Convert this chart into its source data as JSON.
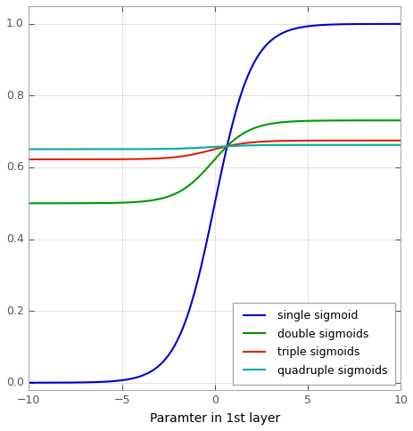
{
  "title": "",
  "xlabel": "Paramter in 1st layer",
  "ylabel": "",
  "xlim": [
    -10,
    10
  ],
  "ylim": [
    -0.02,
    1.05
  ],
  "xticks": [
    -10,
    -5,
    0,
    5,
    10
  ],
  "yticks": [
    0.0,
    0.2,
    0.4,
    0.6,
    0.8,
    1.0
  ],
  "line_colors": {
    "single": "#0000cc",
    "double": "#009900",
    "triple": "#dd2200",
    "quadruple": "#00aaaa"
  },
  "legend_labels": [
    "single sigmoid",
    "double sigmoids",
    "triple sigmoids",
    "quadruple sigmoids"
  ],
  "legend_loc": "lower right",
  "plot_bg_color": "#ffffff",
  "fig_bg_color": "#ffffff",
  "grid_color": "#cccccc",
  "spine_color": "#aaaaaa",
  "tick_color": "#555555",
  "figsize": [
    4.64,
    4.84
  ],
  "dpi": 100,
  "linewidth": 1.5,
  "xlabel_fontsize": 10,
  "tick_fontsize": 9,
  "legend_fontsize": 9
}
